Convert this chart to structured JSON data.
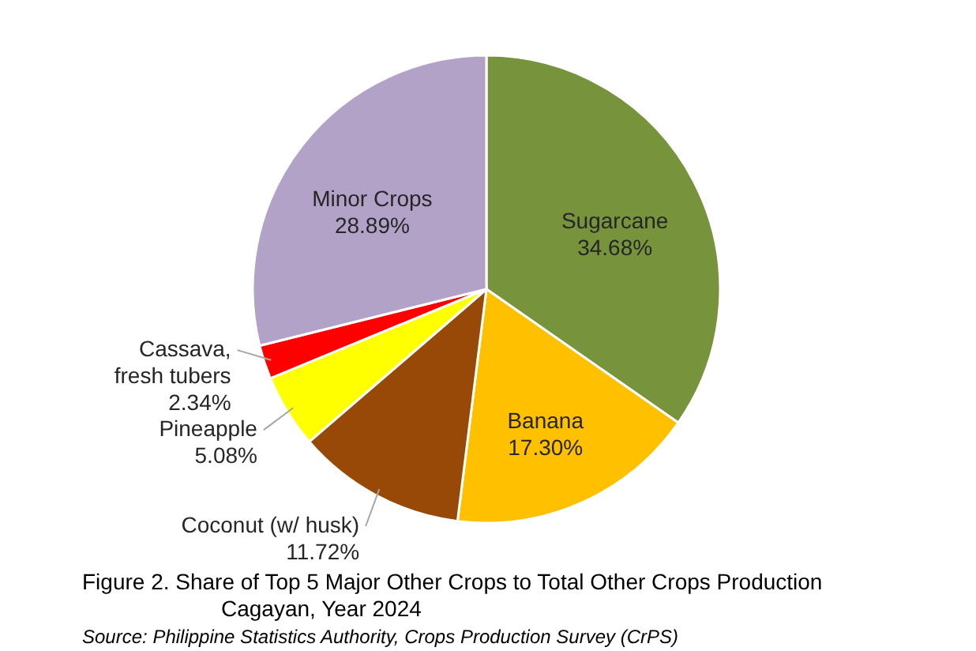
{
  "chart_data": {
    "type": "pie",
    "title": "Figure 2. Share of Top 5 Major Other Crops to Total Other Crops Production\nCagayan, Year 2024",
    "annotations": [
      "Source: Philippine Statistics Authority, Crops Production Survey (CrPS)"
    ],
    "categories": [
      "Sugarcane",
      "Banana",
      "Coconut (w/ husk)",
      "Pineapple",
      "Cassava, fresh tubers",
      "Minor Crops"
    ],
    "values": [
      34.68,
      17.3,
      11.72,
      5.08,
      2.34,
      28.89
    ],
    "value_labels": [
      "34.68%",
      "17.30%",
      "11.72%",
      "5.08%",
      "2.34%",
      "28.89%"
    ],
    "colors": [
      "#77933c",
      "#ffc000",
      "#984807",
      "#ffff00",
      "#ff0000",
      "#b3a2c7"
    ]
  }
}
